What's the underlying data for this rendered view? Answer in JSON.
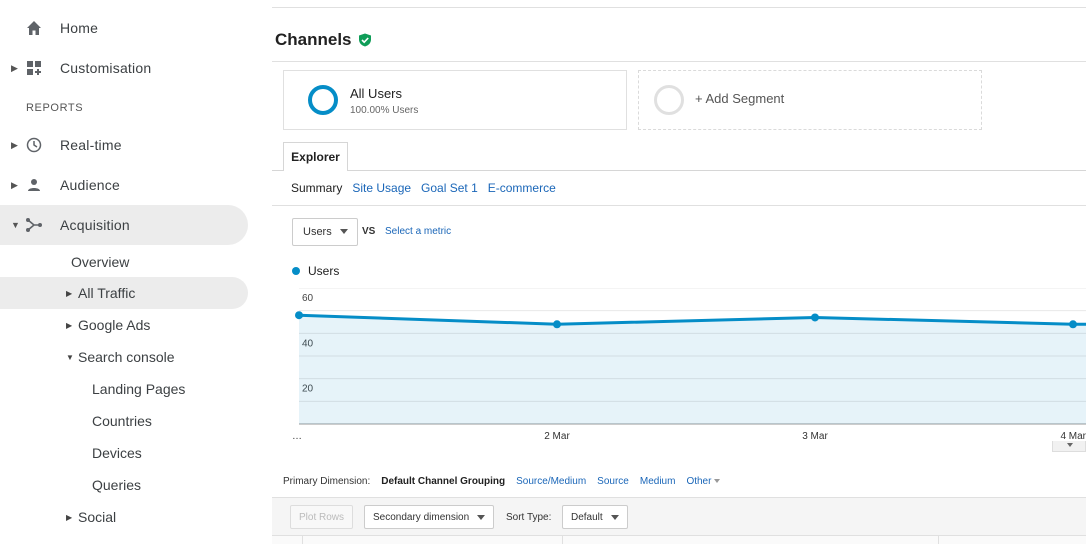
{
  "sidebar": {
    "home": "Home",
    "customisation": "Customisation",
    "reports_heading": "REPORTS",
    "realtime": "Real-time",
    "audience": "Audience",
    "acquisition": "Acquisition",
    "acquisition_children": {
      "overview": "Overview",
      "all_traffic": "All Traffic",
      "google_ads": "Google Ads",
      "search_console": "Search console",
      "landing_pages": "Landing Pages",
      "countries": "Countries",
      "devices": "Devices",
      "queries": "Queries",
      "social": "Social"
    }
  },
  "page": {
    "title": "Channels"
  },
  "segments": {
    "active_name": "All Users",
    "active_sub": "100.00% Users",
    "add_label": "+ Add Segment"
  },
  "explorer": {
    "tab_label": "Explorer",
    "subtabs": [
      "Summary",
      "Site Usage",
      "Goal Set 1",
      "E-commerce"
    ]
  },
  "metric_controls": {
    "metric": "Users",
    "vs": "VS",
    "select_metric": "Select a metric"
  },
  "chart_data": {
    "type": "area",
    "series": [
      {
        "name": "Users",
        "values": [
          48,
          44,
          47,
          44
        ]
      }
    ],
    "x": [
      "…",
      "2 Mar",
      "3 Mar",
      "4 Mar"
    ],
    "ylim": [
      0,
      60
    ],
    "yticks": [
      "60",
      "40",
      "20"
    ],
    "grid": true,
    "color": "#058dc7"
  },
  "dimensions": {
    "label": "Primary Dimension:",
    "current": "Default Channel Grouping",
    "options": [
      "Source/Medium",
      "Source",
      "Medium"
    ],
    "other": "Other"
  },
  "table_toolbar": {
    "plot_rows": "Plot Rows",
    "secondary_dimension": "Secondary dimension",
    "sort_type_label": "Sort Type:",
    "sort_type_value": "Default"
  },
  "colors": {
    "accent": "#058dc7",
    "link": "#1a66b8",
    "verified": "#0f9d58"
  }
}
